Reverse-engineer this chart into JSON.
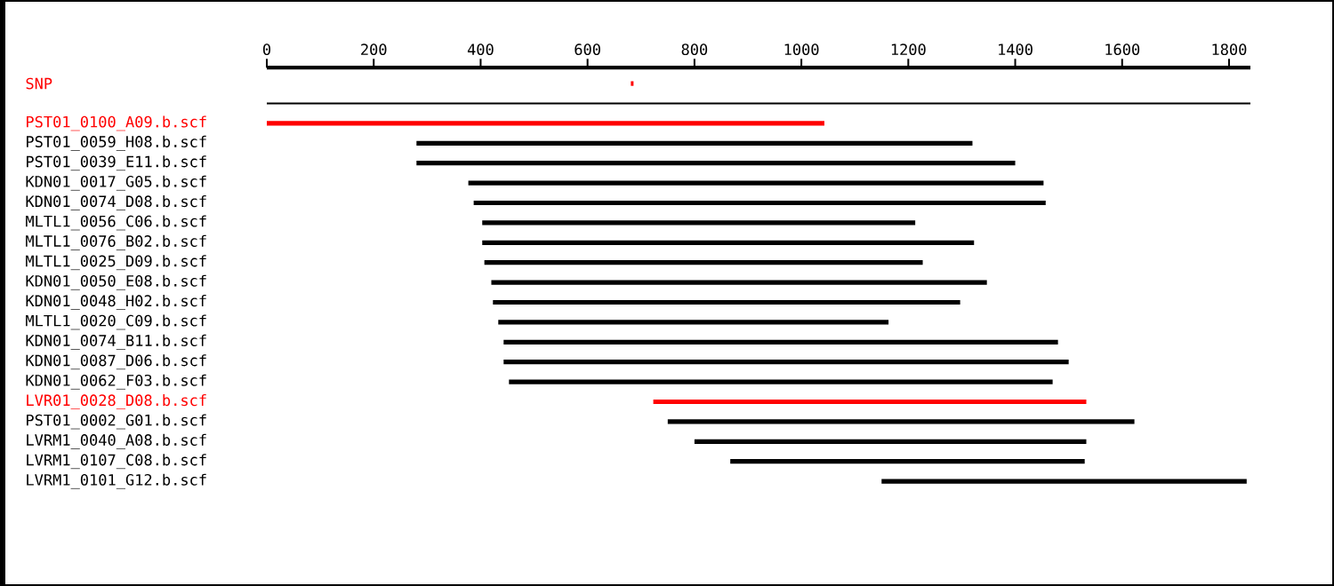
{
  "chart_data": {
    "type": "bar",
    "orientation": "horizontal",
    "categories": [
      "SNP",
      null,
      "PST01_0100_A09.b.scf",
      "PST01_0059_H08.b.scf",
      "PST01_0039_E11.b.scf",
      "KDN01_0017_G05.b.scf",
      "KDN01_0074_D08.b.scf",
      "MLTL1_0056_C06.b.scf",
      "MLTL1_0076_B02.b.scf",
      "MLTL1_0025_D09.b.scf",
      "KDN01_0050_E08.b.scf",
      "KDN01_0048_H02.b.scf",
      "MLTL1_0020_C09.b.scf",
      "KDN01_0074_B11.b.scf",
      "KDN01_0087_D06.b.scf",
      "KDN01_0062_F03.b.scf",
      "LVR01_0028_D08.b.scf",
      "PST01_0002_G01.b.scf",
      "LVRM1_0040_A08.b.scf",
      "LVRM1_0107_C08.b.scf",
      "LVRM1_0101_G12.b.scf"
    ],
    "base": [
      681,
      0,
      0,
      280,
      280,
      377,
      387,
      403,
      403,
      407,
      420,
      423,
      433,
      443,
      443,
      453,
      723,
      750,
      800,
      867,
      1150
    ],
    "values": [
      5,
      1840,
      1043,
      1040,
      1120,
      1076,
      1070,
      810,
      920,
      820,
      927,
      874,
      730,
      1037,
      1057,
      1017,
      810,
      873,
      733,
      663,
      683
    ],
    "colors": [
      "#ff0000",
      "#000000",
      "#ff0000",
      "#000000",
      "#000000",
      "#000000",
      "#000000",
      "#000000",
      "#000000",
      "#000000",
      "#000000",
      "#000000",
      "#000000",
      "#000000",
      "#000000",
      "#000000",
      "#ff0000",
      "#000000",
      "#000000",
      "#000000",
      "#000000"
    ],
    "xlim": [
      0,
      1840
    ],
    "xticks": [
      0,
      200,
      400,
      600,
      800,
      1000,
      1200,
      1400,
      1600,
      1800
    ]
  }
}
